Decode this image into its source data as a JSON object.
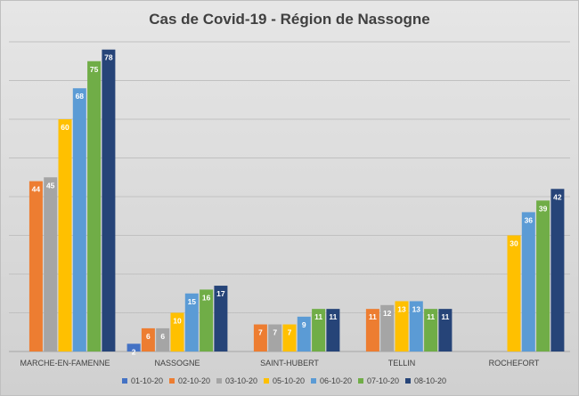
{
  "chart_data": {
    "type": "bar",
    "title": "Cas de Covid-19 - Région de Nassogne",
    "categories": [
      "MARCHE-EN-FAMENNE",
      "NASSOGNE",
      "SAINT-HUBERT",
      "TELLIN",
      "ROCHEFORT"
    ],
    "series": [
      {
        "name": "01-10-20",
        "color": "#4472c4",
        "values": [
          null,
          2,
          null,
          null,
          null
        ]
      },
      {
        "name": "02-10-20",
        "color": "#ed7d31",
        "values": [
          44,
          6,
          7,
          11,
          null
        ]
      },
      {
        "name": "03-10-20",
        "color": "#a5a5a5",
        "values": [
          45,
          6,
          7,
          12,
          null
        ]
      },
      {
        "name": "05-10-20",
        "color": "#ffc000",
        "values": [
          60,
          10,
          7,
          13,
          30
        ]
      },
      {
        "name": "06-10-20",
        "color": "#5b9bd5",
        "values": [
          68,
          15,
          9,
          13,
          36
        ]
      },
      {
        "name": "07-10-20",
        "color": "#70ad47",
        "values": [
          75,
          16,
          11,
          11,
          39
        ]
      },
      {
        "name": "08-10-20",
        "color": "#264478",
        "values": [
          78,
          17,
          11,
          11,
          42
        ]
      }
    ],
    "ylim": [
      0,
      80
    ],
    "grid": true,
    "legend": "bottom"
  }
}
